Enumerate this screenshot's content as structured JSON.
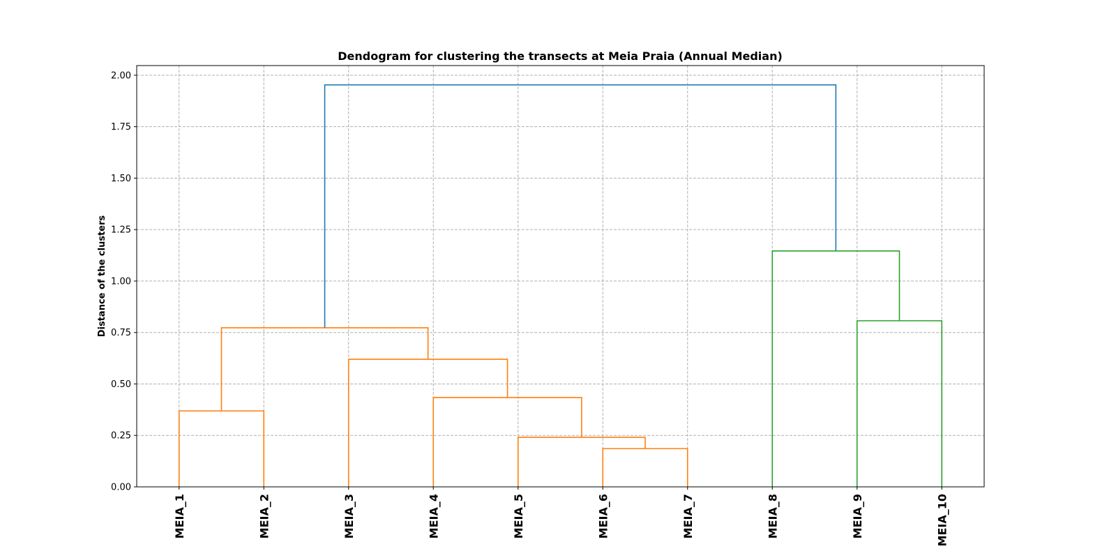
{
  "chart_data": {
    "type": "dendrogram",
    "title": "Dendogram for clustering the transects at Meia Praia (Annual Median)",
    "ylabel": "Distance of the clusters",
    "categories": [
      "MEIA_1",
      "MEIA_2",
      "MEIA_3",
      "MEIA_4",
      "MEIA_5",
      "MEIA_6",
      "MEIA_7",
      "MEIA_8",
      "MEIA_9",
      "MEIA_10"
    ],
    "merges": [
      {
        "left": 5,
        "right": 6,
        "height": 0.186,
        "color": "#ff7f0e"
      },
      {
        "left": 4,
        "right": 10,
        "height": 0.241,
        "color": "#ff7f0e"
      },
      {
        "left": 3,
        "right": 11,
        "height": 0.434,
        "color": "#ff7f0e"
      },
      {
        "left": 2,
        "right": 12,
        "height": 0.62,
        "color": "#ff7f0e"
      },
      {
        "left": 0,
        "right": 1,
        "height": 0.369,
        "color": "#ff7f0e"
      },
      {
        "left": 14,
        "right": 13,
        "height": 0.773,
        "color": "#ff7f0e"
      },
      {
        "left": 8,
        "right": 9,
        "height": 0.807,
        "color": "#2ca02c"
      },
      {
        "left": 7,
        "right": 16,
        "height": 1.146,
        "color": "#2ca02c"
      },
      {
        "left": 15,
        "right": 17,
        "height": 1.953,
        "color": "#1f77b4"
      }
    ],
    "ylim": [
      0,
      2.047
    ],
    "yticks": [
      {
        "value": 0,
        "label": "0.00"
      },
      {
        "value": 0.25,
        "label": "0.25"
      },
      {
        "value": 0.5,
        "label": "0.50"
      },
      {
        "value": 0.75,
        "label": "0.75"
      },
      {
        "value": 1,
        "label": "1.00"
      },
      {
        "value": 1.25,
        "label": "1.25"
      },
      {
        "value": 1.5,
        "label": "1.50"
      },
      {
        "value": 1.75,
        "label": "1.75"
      },
      {
        "value": 2,
        "label": "2.00"
      }
    ],
    "grid": true
  }
}
